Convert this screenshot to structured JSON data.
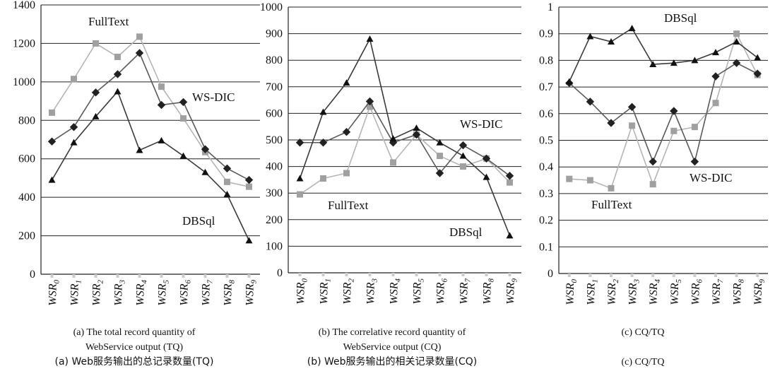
{
  "colors": {
    "FullText": "#a9a9a9",
    "WS-DIC": "#5c5c5c",
    "DBSql": "#333333",
    "grid": "#222222"
  },
  "captions": [
    {
      "en": [
        "(a) The total record quantity of",
        "WebService output (TQ)"
      ],
      "cn": "(a) Web服务输出的总记录数量(TQ)"
    },
    {
      "en": [
        "(b) The correlative record quantity of",
        "WebService output (CQ)"
      ],
      "cn": "(b) Web服务输出的相关记录数量(CQ)"
    },
    {
      "en": [
        "(c) CQ/TQ"
      ],
      "cn": "(c) CQ/TQ"
    }
  ],
  "chart_data": [
    {
      "type": "line",
      "categories": [
        "WSR0",
        "WSR1",
        "WSR2",
        "WSR3",
        "WSR4",
        "WSR5",
        "WSR6",
        "WSR7",
        "WSR8",
        "WSR9"
      ],
      "yticks": [
        "0",
        "200",
        "400",
        "600",
        "800",
        "1000",
        "1200",
        "1400"
      ],
      "ylim": [
        0,
        1400
      ],
      "grid": true,
      "series": [
        {
          "name": "FullText",
          "marker": "square",
          "values": [
            840,
            1015,
            1200,
            1130,
            1235,
            975,
            810,
            635,
            480,
            455
          ]
        },
        {
          "name": "WS-DIC",
          "marker": "diamond",
          "values": [
            690,
            765,
            945,
            1040,
            1150,
            880,
            895,
            650,
            550,
            490
          ]
        },
        {
          "name": "DBSql",
          "marker": "triangle",
          "values": [
            490,
            685,
            820,
            950,
            645,
            695,
            615,
            530,
            415,
            175
          ]
        }
      ],
      "annotations": [
        {
          "text": "FullText",
          "series": "FullText"
        },
        {
          "text": "WS-DIC",
          "series": "WS-DIC"
        },
        {
          "text": "DBSql",
          "series": "DBSql"
        }
      ]
    },
    {
      "type": "line",
      "categories": [
        "WSR0",
        "WSR1",
        "WSR2",
        "WSR3",
        "WSR4",
        "WSR5",
        "WSR6",
        "WSR7",
        "WSR8",
        "WSR9"
      ],
      "yticks": [
        "0",
        "100",
        "200",
        "300",
        "400",
        "500",
        "600",
        "700",
        "800",
        "900",
        "1000"
      ],
      "ylim": [
        0,
        1000
      ],
      "grid": true,
      "series": [
        {
          "name": "FullText",
          "marker": "square",
          "values": [
            295,
            355,
            375,
            625,
            415,
            520,
            440,
            400,
            430,
            340
          ]
        },
        {
          "name": "WS-DIC",
          "marker": "diamond",
          "values": [
            490,
            490,
            530,
            645,
            490,
            520,
            375,
            480,
            430,
            365
          ]
        },
        {
          "name": "DBSql",
          "marker": "triangle",
          "values": [
            355,
            605,
            715,
            880,
            505,
            545,
            490,
            440,
            360,
            140
          ]
        }
      ],
      "annotations": [
        {
          "text": "WS-DIC",
          "series": "WS-DIC"
        },
        {
          "text": "FullText",
          "series": "FullText"
        },
        {
          "text": "DBSql",
          "series": "DBSql"
        }
      ]
    },
    {
      "type": "line",
      "categories": [
        "WSR0",
        "WSR1",
        "WSR2",
        "WSR3",
        "WSR4",
        "WSR5",
        "WSR6",
        "WSR7",
        "WSR8",
        "WSR9"
      ],
      "yticks": [
        "0",
        "0.1",
        "0.2",
        "0.3",
        "0.4",
        "0.5",
        "0.6",
        "0.7",
        "0.8",
        "0.9",
        "1"
      ],
      "ylim": [
        0,
        1
      ],
      "grid": true,
      "series": [
        {
          "name": "FullText",
          "marker": "square",
          "values": [
            0.355,
            0.35,
            0.32,
            0.555,
            0.335,
            0.535,
            0.55,
            0.64,
            0.9,
            0.745
          ]
        },
        {
          "name": "WS-DIC",
          "marker": "diamond",
          "values": [
            0.715,
            0.645,
            0.565,
            0.625,
            0.42,
            0.61,
            0.42,
            0.74,
            0.79,
            0.75
          ]
        },
        {
          "name": "DBSql",
          "marker": "triangle",
          "values": [
            0.72,
            0.89,
            0.87,
            0.92,
            0.785,
            0.79,
            0.8,
            0.83,
            0.87,
            0.81
          ]
        }
      ],
      "annotations": [
        {
          "text": "DBSql",
          "series": "DBSql"
        },
        {
          "text": "WS-DIC",
          "series": "WS-DIC"
        },
        {
          "text": "FullText",
          "series": "FullText"
        }
      ]
    }
  ]
}
